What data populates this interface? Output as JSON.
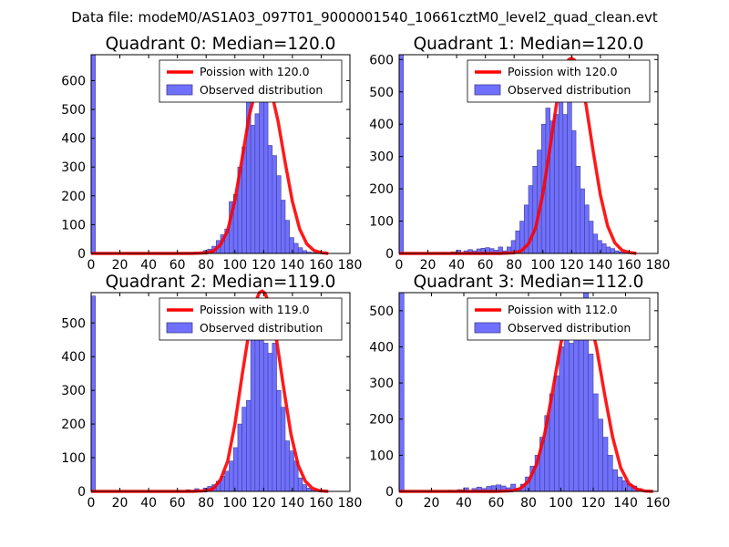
{
  "suptitle": "Data file: modeM0/AS1A03_097T01_9000001540_10661cztM0_level2_quad_clean.evt",
  "colors": {
    "bar": "#7070ff",
    "bar_edge": "#404090",
    "line": "#ff0000",
    "axis": "#000000"
  },
  "legend": {
    "poisson_prefix": "Poission with ",
    "observed": "Observed distribution"
  },
  "chart_data": [
    {
      "type": "bar+line",
      "title": "Quadrant 0: Median=120.0",
      "median": 120.0,
      "poisson_label": "Poission with 120.0",
      "xlim": [
        0,
        180
      ],
      "ylim": [
        0,
        690
      ],
      "xticks": [
        0,
        20,
        40,
        60,
        80,
        100,
        120,
        140,
        160,
        180
      ],
      "yticks": [
        0,
        100,
        200,
        300,
        400,
        500,
        600
      ],
      "bin_width": 3,
      "bar_x": [
        0,
        60,
        63,
        66,
        69,
        72,
        75,
        78,
        81,
        84,
        87,
        90,
        93,
        96,
        99,
        102,
        105,
        108,
        111,
        114,
        117,
        120,
        123,
        126,
        129,
        132,
        135,
        138,
        141,
        144,
        147,
        150,
        153,
        156,
        159
      ],
      "bar_values": [
        690,
        2,
        2,
        3,
        3,
        4,
        5,
        10,
        15,
        25,
        45,
        65,
        85,
        180,
        205,
        300,
        370,
        525,
        445,
        485,
        530,
        570,
        375,
        340,
        270,
        185,
        115,
        55,
        35,
        20,
        10,
        5,
        3,
        2,
        1
      ],
      "curve_x": [
        60,
        70,
        80,
        85,
        90,
        95,
        100,
        105,
        110,
        115,
        118,
        120,
        122,
        125,
        130,
        135,
        140,
        145,
        150,
        155,
        160,
        165
      ],
      "curve_y": [
        0,
        0,
        2,
        8,
        30,
        80,
        185,
        330,
        480,
        575,
        600,
        604,
        598,
        570,
        460,
        315,
        180,
        85,
        33,
        10,
        3,
        0
      ]
    },
    {
      "type": "bar+line",
      "title": "Quadrant 1: Median=120.0",
      "median": 120.0,
      "poisson_label": "Poission with 120.0",
      "xlim": [
        0,
        180
      ],
      "ylim": [
        0,
        615
      ],
      "xticks": [
        0,
        20,
        40,
        60,
        80,
        100,
        120,
        140,
        160,
        180
      ],
      "yticks": [
        0,
        100,
        200,
        300,
        400,
        500,
        600
      ],
      "bin_width": 3,
      "bar_x": [
        0,
        30,
        36,
        40,
        45,
        48,
        51,
        54,
        57,
        60,
        63,
        66,
        69,
        72,
        75,
        78,
        81,
        84,
        87,
        90,
        93,
        96,
        99,
        102,
        105,
        108,
        111,
        114,
        117,
        120,
        123,
        126,
        129,
        132,
        135,
        138,
        141,
        144,
        147,
        150,
        153,
        156
      ],
      "bar_values": [
        615,
        3,
        5,
        10,
        8,
        12,
        8,
        14,
        16,
        18,
        15,
        10,
        20,
        8,
        20,
        40,
        70,
        100,
        150,
        210,
        270,
        320,
        400,
        450,
        410,
        430,
        500,
        430,
        550,
        380,
        270,
        200,
        150,
        100,
        60,
        40,
        30,
        20,
        15,
        8,
        5,
        3
      ],
      "curve_x": [
        60,
        70,
        80,
        85,
        90,
        95,
        100,
        105,
        110,
        115,
        118,
        120,
        122,
        125,
        130,
        135,
        140,
        145,
        150,
        155,
        160,
        165
      ],
      "curve_y": [
        0,
        0,
        2,
        8,
        30,
        80,
        185,
        330,
        480,
        575,
        600,
        604,
        598,
        570,
        460,
        315,
        180,
        85,
        33,
        10,
        3,
        0
      ]
    },
    {
      "type": "bar+line",
      "title": "Quadrant 2: Median=119.0",
      "median": 119.0,
      "poisson_label": "Poission with 119.0",
      "xlim": [
        0,
        180
      ],
      "ylim": [
        0,
        590
      ],
      "xticks": [
        0,
        20,
        40,
        60,
        80,
        100,
        120,
        140,
        160,
        180
      ],
      "yticks": [
        0,
        100,
        200,
        300,
        400,
        500
      ],
      "bin_width": 3,
      "bar_x": [
        0,
        66,
        72,
        78,
        81,
        84,
        87,
        90,
        93,
        96,
        99,
        102,
        105,
        108,
        111,
        114,
        117,
        120,
        123,
        126,
        129,
        132,
        135,
        138,
        141,
        144,
        147,
        150,
        153
      ],
      "bar_values": [
        580,
        5,
        8,
        10,
        15,
        20,
        30,
        45,
        60,
        90,
        130,
        200,
        250,
        270,
        480,
        560,
        490,
        440,
        410,
        440,
        300,
        250,
        150,
        120,
        90,
        40,
        20,
        10,
        5
      ],
      "curve_x": [
        60,
        70,
        80,
        85,
        90,
        95,
        100,
        105,
        110,
        114,
        117,
        119,
        121,
        124,
        129,
        134,
        139,
        144,
        149,
        154,
        159,
        165
      ],
      "curve_y": [
        0,
        0,
        2,
        8,
        35,
        90,
        200,
        345,
        480,
        560,
        590,
        595,
        588,
        555,
        450,
        305,
        170,
        78,
        30,
        9,
        2,
        0
      ]
    },
    {
      "type": "bar+line",
      "title": "Quadrant 3: Median=112.0",
      "median": 112.0,
      "poisson_label": "Poission with 112.0",
      "xlim": [
        0,
        160
      ],
      "ylim": [
        0,
        550
      ],
      "xticks": [
        0,
        20,
        40,
        60,
        80,
        100,
        120,
        140,
        160
      ],
      "yticks": [
        0,
        100,
        200,
        300,
        400,
        500
      ],
      "bin_width": 3,
      "bar_x": [
        0,
        30,
        36,
        40,
        45,
        48,
        51,
        54,
        57,
        60,
        63,
        66,
        69,
        72,
        75,
        78,
        81,
        84,
        87,
        90,
        93,
        96,
        99,
        102,
        105,
        108,
        111,
        114,
        117,
        120,
        123,
        126,
        129,
        132,
        135,
        138,
        141,
        144,
        147
      ],
      "bar_values": [
        550,
        3,
        5,
        10,
        8,
        12,
        8,
        14,
        16,
        18,
        15,
        10,
        20,
        8,
        20,
        40,
        70,
        100,
        150,
        210,
        270,
        320,
        400,
        450,
        410,
        500,
        430,
        550,
        380,
        270,
        200,
        150,
        100,
        60,
        40,
        30,
        20,
        15,
        8
      ],
      "curve_x": [
        60,
        70,
        75,
        80,
        85,
        90,
        95,
        100,
        105,
        108,
        110,
        112,
        114,
        117,
        122,
        127,
        132,
        137,
        142,
        147,
        152,
        157
      ],
      "curve_y": [
        0,
        2,
        8,
        28,
        75,
        160,
        280,
        410,
        495,
        515,
        520,
        522,
        515,
        490,
        400,
        270,
        150,
        65,
        22,
        6,
        1,
        0
      ]
    }
  ]
}
